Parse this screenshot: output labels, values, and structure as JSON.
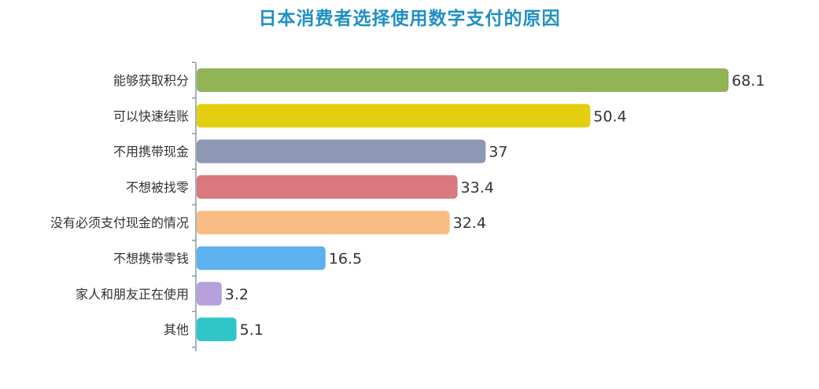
{
  "chart_data": {
    "type": "bar",
    "orientation": "horizontal",
    "title": "日本消费者选择使用数字支付的原因",
    "categories": [
      "能够获取积分",
      "可以快速结账",
      "不用携带现金",
      "不想被找零",
      "没有必须支付现金的情况",
      "不想携带零钱",
      "家人和朋友正在使用",
      "其他"
    ],
    "values": [
      68.1,
      50.4,
      37,
      33.4,
      32.4,
      16.5,
      3.2,
      5.1
    ],
    "value_labels": [
      "68.1",
      "50.4",
      "37",
      "33.4",
      "32.4",
      "16.5",
      "3.2",
      "5.1"
    ],
    "colors": [
      "#92b356",
      "#e3cf0f",
      "#8d98b4",
      "#d9787d",
      "#f9bd84",
      "#5cb1ef",
      "#b7a0dc",
      "#30c6c9"
    ],
    "xlim": [
      0,
      70
    ],
    "grid": false,
    "legend": "none"
  }
}
